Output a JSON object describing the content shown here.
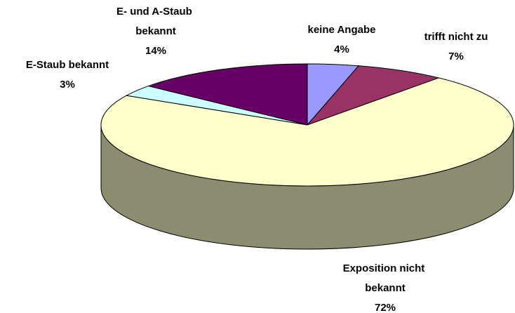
{
  "chart_data": {
    "type": "pie3d",
    "categories": [
      "keine Angabe",
      "trifft nicht zu",
      "Exposition nicht bekannt",
      "E-Staub bekannt",
      "E- und A-Staub bekannt"
    ],
    "values": [
      4,
      7,
      72,
      3,
      14
    ],
    "value_labels": [
      "4%",
      "7%",
      "72%",
      "3%",
      "14%"
    ],
    "colors": [
      "#9999ff",
      "#993366",
      "#ffffcc",
      "#ccffff",
      "#660066"
    ]
  }
}
